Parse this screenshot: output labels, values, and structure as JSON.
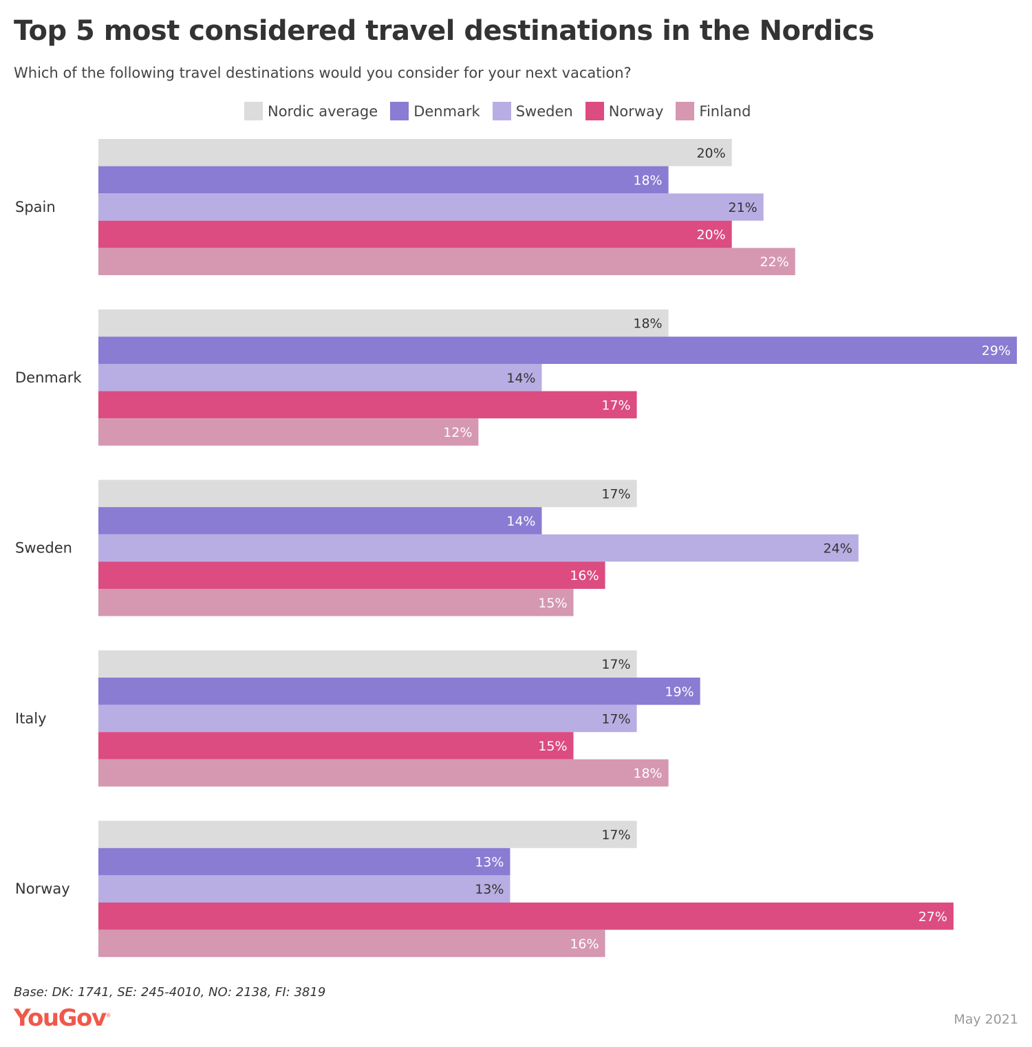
{
  "chart_data": {
    "type": "bar",
    "orientation": "horizontal",
    "title": "Top 5 most considered travel destinations in the Nordics",
    "subtitle": "Which of the following travel destinations would you consider for your next vacation?",
    "categories": [
      "Spain",
      "Denmark",
      "Sweden",
      "Italy",
      "Norway"
    ],
    "series": [
      {
        "name": "Nordic average",
        "color": "#dcdcdc",
        "label_color": "#333333",
        "values": [
          20,
          18,
          17,
          17,
          17
        ]
      },
      {
        "name": "Denmark",
        "color": "#8a7bd3",
        "label_color": "#ffffff",
        "values": [
          18,
          29,
          14,
          19,
          13
        ]
      },
      {
        "name": "Sweden",
        "color": "#b8aee3",
        "label_color": "#333333",
        "values": [
          21,
          14,
          24,
          17,
          13
        ]
      },
      {
        "name": "Norway",
        "color": "#dc4c80",
        "label_color": "#ffffff",
        "values": [
          20,
          17,
          16,
          15,
          27
        ]
      },
      {
        "name": "Finland",
        "color": "#d598b0",
        "label_color": "#ffffff",
        "values": [
          22,
          12,
          15,
          18,
          16
        ]
      }
    ],
    "value_suffix": "%",
    "xlim": [
      0,
      29
    ],
    "grid": false,
    "legend_placement": "top-center"
  },
  "footer": {
    "base": "Base: DK: 1741, SE: 245-4010, NO: 2138, FI: 3819",
    "logo": "YouGov",
    "date": "May 2021"
  }
}
